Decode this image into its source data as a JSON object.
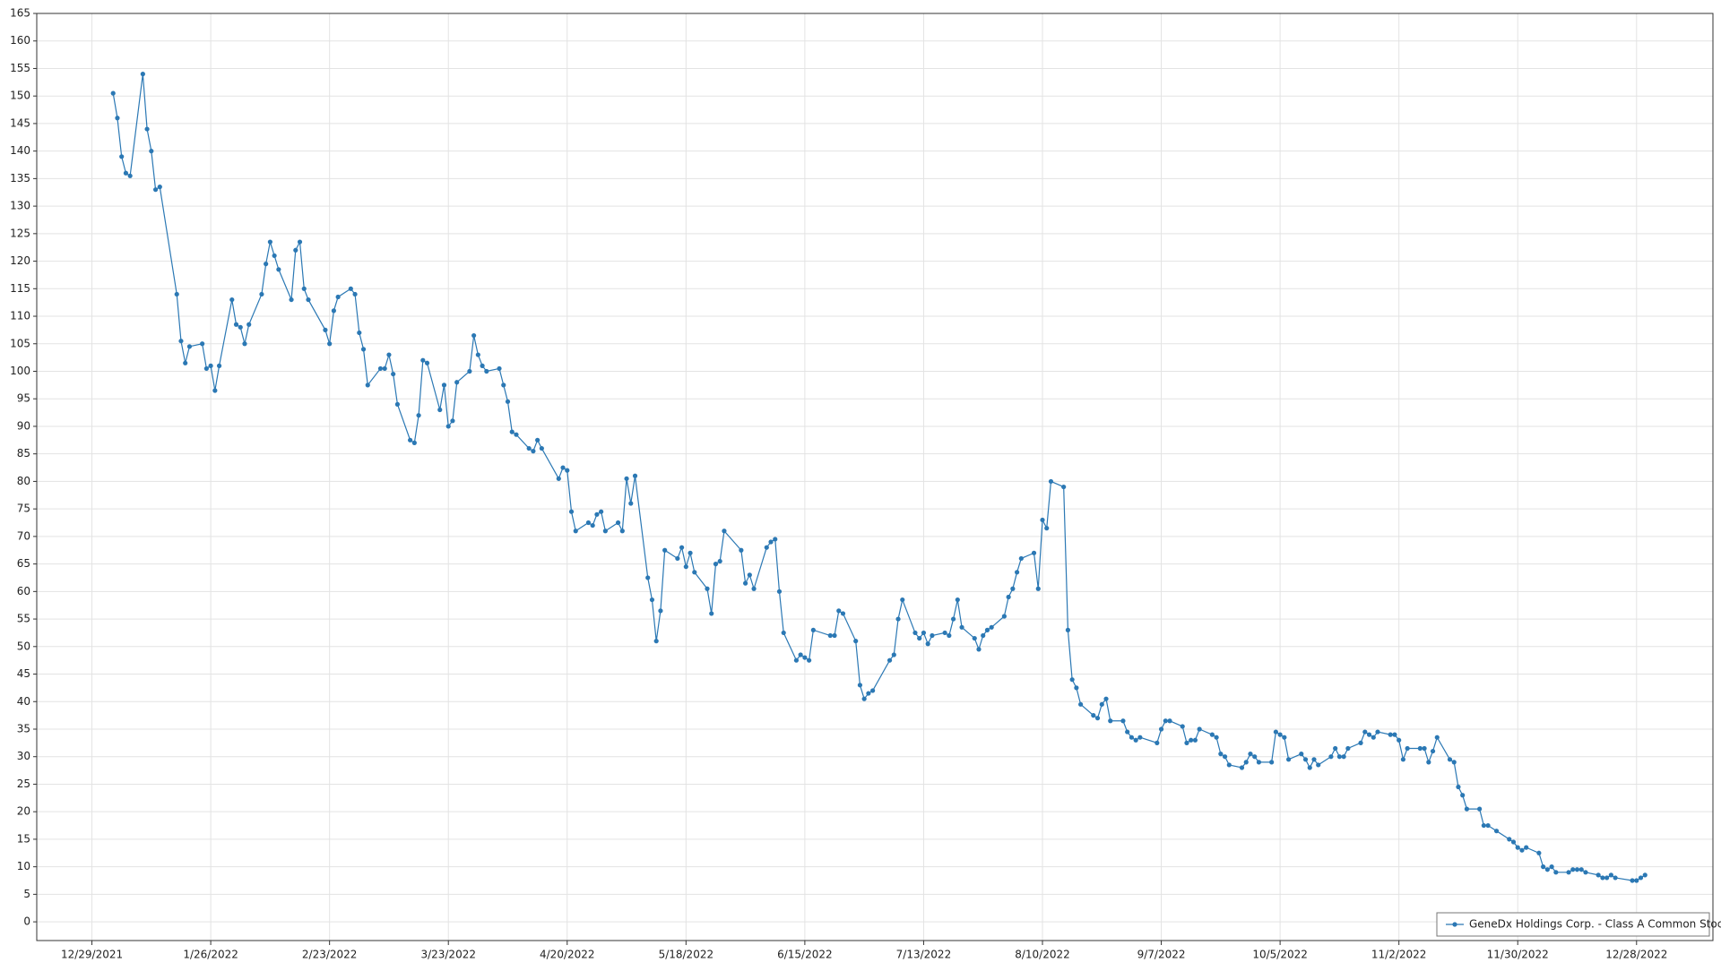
{
  "chart_data": {
    "type": "line",
    "x": [
      "1/3/2022",
      "1/4/2022",
      "1/5/2022",
      "1/6/2022",
      "1/7/2022",
      "1/10/2022",
      "1/11/2022",
      "1/12/2022",
      "1/13/2022",
      "1/14/2022",
      "1/18/2022",
      "1/19/2022",
      "1/20/2022",
      "1/21/2022",
      "1/24/2022",
      "1/25/2022",
      "1/26/2022",
      "1/27/2022",
      "1/28/2022",
      "1/31/2022",
      "2/1/2022",
      "2/2/2022",
      "2/3/2022",
      "2/4/2022",
      "2/7/2022",
      "2/8/2022",
      "2/9/2022",
      "2/10/2022",
      "2/11/2022",
      "2/14/2022",
      "2/15/2022",
      "2/16/2022",
      "2/17/2022",
      "2/18/2022",
      "2/22/2022",
      "2/23/2022",
      "2/24/2022",
      "2/25/2022",
      "2/28/2022",
      "3/1/2022",
      "3/2/2022",
      "3/3/2022",
      "3/4/2022",
      "3/7/2022",
      "3/8/2022",
      "3/9/2022",
      "3/10/2022",
      "3/11/2022",
      "3/14/2022",
      "3/15/2022",
      "3/16/2022",
      "3/17/2022",
      "3/18/2022",
      "3/21/2022",
      "3/22/2022",
      "3/23/2022",
      "3/24/2022",
      "3/25/2022",
      "3/28/2022",
      "3/29/2022",
      "3/30/2022",
      "3/31/2022",
      "4/1/2022",
      "4/4/2022",
      "4/5/2022",
      "4/6/2022",
      "4/7/2022",
      "4/8/2022",
      "4/11/2022",
      "4/12/2022",
      "4/13/2022",
      "4/14/2022",
      "4/18/2022",
      "4/19/2022",
      "4/20/2022",
      "4/21/2022",
      "4/22/2022",
      "4/25/2022",
      "4/26/2022",
      "4/27/2022",
      "4/28/2022",
      "4/29/2022",
      "5/2/2022",
      "5/3/2022",
      "5/4/2022",
      "5/5/2022",
      "5/6/2022",
      "5/9/2022",
      "5/10/2022",
      "5/11/2022",
      "5/12/2022",
      "5/13/2022",
      "5/16/2022",
      "5/17/2022",
      "5/18/2022",
      "5/19/2022",
      "5/20/2022",
      "5/23/2022",
      "5/24/2022",
      "5/25/2022",
      "5/26/2022",
      "5/27/2022",
      "5/31/2022",
      "6/1/2022",
      "6/2/2022",
      "6/3/2022",
      "6/6/2022",
      "6/7/2022",
      "6/8/2022",
      "6/9/2022",
      "6/10/2022",
      "6/13/2022",
      "6/14/2022",
      "6/15/2022",
      "6/16/2022",
      "6/17/2022",
      "6/21/2022",
      "6/22/2022",
      "6/23/2022",
      "6/24/2022",
      "6/27/2022",
      "6/28/2022",
      "6/29/2022",
      "6/30/2022",
      "7/1/2022",
      "7/5/2022",
      "7/6/2022",
      "7/7/2022",
      "7/8/2022",
      "7/11/2022",
      "7/12/2022",
      "7/13/2022",
      "7/14/2022",
      "7/15/2022",
      "7/18/2022",
      "7/19/2022",
      "7/20/2022",
      "7/21/2022",
      "7/22/2022",
      "7/25/2022",
      "7/26/2022",
      "7/27/2022",
      "7/28/2022",
      "7/29/2022",
      "8/1/2022",
      "8/2/2022",
      "8/3/2022",
      "8/4/2022",
      "8/5/2022",
      "8/8/2022",
      "8/9/2022",
      "8/10/2022",
      "8/11/2022",
      "8/12/2022",
      "8/15/2022",
      "8/16/2022",
      "8/17/2022",
      "8/18/2022",
      "8/19/2022",
      "8/22/2022",
      "8/23/2022",
      "8/24/2022",
      "8/25/2022",
      "8/26/2022",
      "8/29/2022",
      "8/30/2022",
      "8/31/2022",
      "9/1/2022",
      "9/2/2022",
      "9/6/2022",
      "9/7/2022",
      "9/8/2022",
      "9/9/2022",
      "9/12/2022",
      "9/13/2022",
      "9/14/2022",
      "9/15/2022",
      "9/16/2022",
      "9/19/2022",
      "9/20/2022",
      "9/21/2022",
      "9/22/2022",
      "9/23/2022",
      "9/26/2022",
      "9/27/2022",
      "9/28/2022",
      "9/29/2022",
      "9/30/2022",
      "10/3/2022",
      "10/4/2022",
      "10/5/2022",
      "10/6/2022",
      "10/7/2022",
      "10/10/2022",
      "10/11/2022",
      "10/12/2022",
      "10/13/2022",
      "10/14/2022",
      "10/17/2022",
      "10/18/2022",
      "10/19/2022",
      "10/20/2022",
      "10/21/2022",
      "10/24/2022",
      "10/25/2022",
      "10/26/2022",
      "10/27/2022",
      "10/28/2022",
      "10/31/2022",
      "11/1/2022",
      "11/2/2022",
      "11/3/2022",
      "11/4/2022",
      "11/7/2022",
      "11/8/2022",
      "11/9/2022",
      "11/10/2022",
      "11/11/2022",
      "11/14/2022",
      "11/15/2022",
      "11/16/2022",
      "11/17/2022",
      "11/18/2022",
      "11/21/2022",
      "11/22/2022",
      "11/23/2022",
      "11/25/2022",
      "11/28/2022",
      "11/29/2022",
      "11/30/2022",
      "12/1/2022",
      "12/2/2022",
      "12/5/2022",
      "12/6/2022",
      "12/7/2022",
      "12/8/2022",
      "12/9/2022",
      "12/12/2022",
      "12/13/2022",
      "12/14/2022",
      "12/15/2022",
      "12/16/2022",
      "12/19/2022",
      "12/20/2022",
      "12/21/2022",
      "12/22/2022",
      "12/23/2022",
      "12/27/2022",
      "12/28/2022",
      "12/29/2022",
      "12/30/2022"
    ],
    "series": [
      {
        "name": "GeneDx Holdings Corp. - Class A Common Stock",
        "color": "#2b78b4",
        "values": [
          150.5,
          146,
          139,
          136,
          135.5,
          154,
          144,
          140,
          133,
          133.5,
          114,
          105.5,
          101.5,
          104.5,
          105,
          100.5,
          101,
          96.5,
          101,
          113,
          108.5,
          108,
          105,
          108.5,
          114,
          119.5,
          123.5,
          121,
          118.5,
          113,
          122,
          123.5,
          115,
          113,
          107.5,
          105,
          111,
          113.5,
          115,
          114,
          107,
          104,
          97.5,
          100.5,
          100.5,
          103,
          99.5,
          94,
          87.5,
          87,
          92,
          102,
          101.5,
          93,
          97.5,
          90,
          91,
          98,
          100,
          106.5,
          103,
          101,
          100,
          100.5,
          97.5,
          94.5,
          89,
          88.5,
          86,
          85.5,
          87.5,
          86,
          80.5,
          82.5,
          82,
          74.5,
          71,
          72.5,
          72,
          74,
          74.5,
          71,
          72.5,
          71,
          80.5,
          76,
          81,
          62.5,
          58.5,
          51,
          56.5,
          67.5,
          66,
          68,
          64.5,
          67,
          63.5,
          60.5,
          56,
          65,
          65.5,
          71,
          67.5,
          61.5,
          63,
          60.5,
          68,
          69,
          69.5,
          60,
          52.5,
          47.5,
          48.5,
          48,
          47.5,
          53,
          52,
          52,
          56.5,
          56,
          51,
          43,
          40.5,
          41.5,
          42,
          47.5,
          48.5,
          55,
          58.5,
          52.5,
          51.5,
          52.5,
          50.5,
          52,
          52.5,
          52,
          55,
          58.5,
          53.5,
          51.5,
          49.5,
          52,
          53,
          53.5,
          55.5,
          59,
          60.5,
          63.5,
          66,
          67,
          60.5,
          73,
          71.5,
          80,
          79,
          53,
          44,
          42.5,
          39.5,
          37.5,
          37,
          39.5,
          40.5,
          36.5,
          36.5,
          34.5,
          33.5,
          33,
          33.5,
          32.5,
          35,
          36.5,
          36.5,
          35.5,
          32.5,
          33,
          33,
          35,
          34,
          33.5,
          30.5,
          30,
          28.5,
          28,
          29,
          30.5,
          30,
          29,
          29,
          34.5,
          34,
          33.5,
          29.5,
          30.5,
          29.5,
          28,
          29.5,
          28.5,
          30,
          31.5,
          30,
          30,
          31.5,
          32.5,
          34.5,
          34,
          33.5,
          34.5,
          34,
          34,
          33,
          29.5,
          31.5,
          31.5,
          31.5,
          29,
          31,
          33.5,
          29.5,
          29,
          24.5,
          23,
          20.5,
          20.5,
          17.5,
          17.5,
          16.5,
          15,
          14.5,
          13.5,
          13,
          13.5,
          12.5,
          10,
          9.5,
          10,
          9,
          9,
          9.5,
          9.5,
          9.5,
          9,
          8.5,
          8,
          8,
          8.5,
          8,
          7.5,
          7.5,
          8,
          8.5
        ]
      }
    ],
    "xlim": [
      "12/16/2021",
      "1/15/2023"
    ],
    "xticks": [
      "12/29/2021",
      "1/26/2022",
      "2/23/2022",
      "3/23/2022",
      "4/20/2022",
      "5/18/2022",
      "6/15/2022",
      "7/13/2022",
      "8/10/2022",
      "9/7/2022",
      "10/5/2022",
      "11/2/2022",
      "11/30/2022",
      "12/28/2022"
    ],
    "ylim": [
      -3.4,
      165
    ],
    "yticks": [
      0,
      5,
      10,
      15,
      20,
      25,
      30,
      35,
      40,
      45,
      50,
      55,
      60,
      65,
      70,
      75,
      80,
      85,
      90,
      95,
      100,
      105,
      110,
      115,
      120,
      125,
      130,
      135,
      140,
      145,
      150,
      155,
      160,
      165
    ],
    "grid": true,
    "legend": "lower right"
  }
}
